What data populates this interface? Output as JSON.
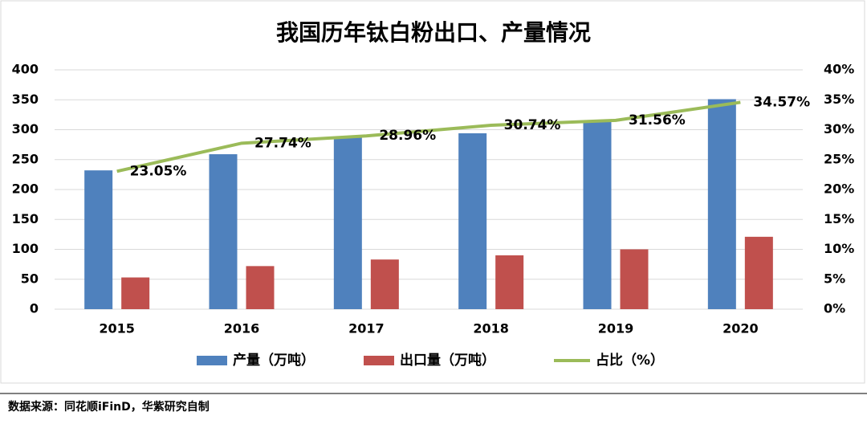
{
  "chart_data": {
    "type": "bar-line",
    "title": "我国历年钛白粉出口、产量情况",
    "categories": [
      "2015",
      "2016",
      "2017",
      "2018",
      "2019",
      "2020"
    ],
    "series": [
      {
        "name": "产量（万吨）",
        "color": "#4f81bd",
        "type": "bar",
        "values": [
          232,
          259,
          287,
          294,
          316,
          351
        ]
      },
      {
        "name": "出口量（万吨）",
        "color": "#c0504d",
        "type": "bar",
        "values": [
          53,
          72,
          83,
          90,
          100,
          121
        ]
      },
      {
        "name": "占比（%）",
        "color": "#9bbb59",
        "type": "line",
        "axis": "y2",
        "values": [
          23.05,
          27.74,
          28.96,
          30.74,
          31.56,
          34.57
        ],
        "value_labels": [
          "23.05%",
          "27.74%",
          "28.96%",
          "30.74%",
          "31.56%",
          "34.57%"
        ]
      }
    ],
    "ylim": [
      0,
      400
    ],
    "yticks": [
      0,
      50,
      100,
      150,
      200,
      250,
      300,
      350,
      400
    ],
    "y2lim": [
      0,
      40
    ],
    "y2ticks": [
      {
        "value": 0,
        "label": "0%"
      },
      {
        "value": 5,
        "label": "5%"
      },
      {
        "value": 10,
        "label": "10%"
      },
      {
        "value": 15,
        "label": "15%"
      },
      {
        "value": 20,
        "label": "20%"
      },
      {
        "value": 25,
        "label": "25%"
      },
      {
        "value": 30,
        "label": "30%"
      },
      {
        "value": 35,
        "label": "35%"
      },
      {
        "value": 40,
        "label": "40%"
      }
    ],
    "grid": true,
    "source": "数据来源：同花顺iFinD，华紫研究自制"
  }
}
